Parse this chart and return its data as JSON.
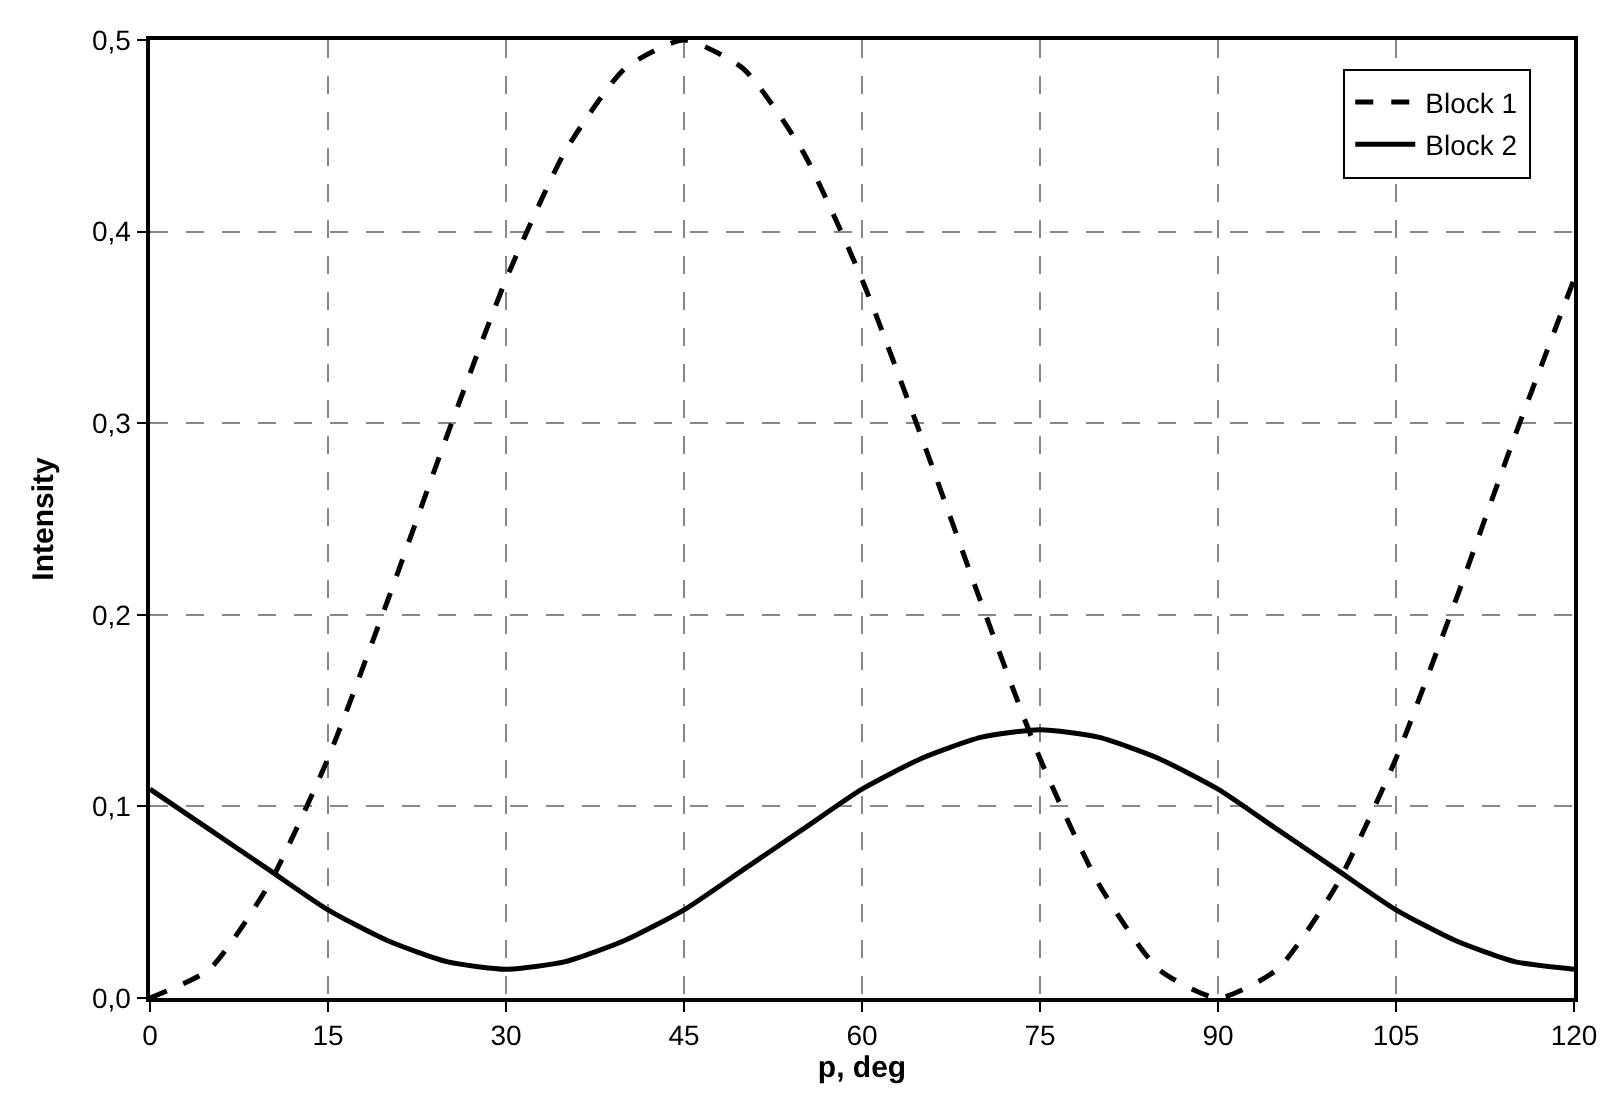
{
  "chart_data": {
    "type": "line",
    "xlabel": "p, deg",
    "ylabel": "Intensity",
    "x": [
      0,
      5,
      10,
      15,
      20,
      25,
      30,
      35,
      40,
      45,
      50,
      55,
      60,
      65,
      70,
      75,
      80,
      85,
      90,
      95,
      100,
      105,
      110,
      115,
      120
    ],
    "series": [
      {
        "name": "Block 1",
        "color": "#000000",
        "line_style": "dashed",
        "values": [
          0,
          0.015,
          0.059,
          0.125,
          0.207,
          0.293,
          0.375,
          0.442,
          0.485,
          0.5,
          0.485,
          0.442,
          0.375,
          0.293,
          0.207,
          0.125,
          0.059,
          0.015,
          0,
          0.015,
          0.059,
          0.125,
          0.207,
          0.293,
          0.375
        ]
      },
      {
        "name": "Block 2",
        "color": "#000000",
        "line_style": "solid",
        "values": [
          0.109,
          0.088,
          0.067,
          0.046,
          0.03,
          0.019,
          0.015,
          0.019,
          0.03,
          0.046,
          0.067,
          0.088,
          0.109,
          0.125,
          0.136,
          0.14,
          0.136,
          0.125,
          0.109,
          0.088,
          0.067,
          0.046,
          0.03,
          0.019,
          0.015
        ]
      }
    ],
    "xlim": [
      0,
      120
    ],
    "xticks": [
      0,
      15,
      30,
      45,
      60,
      75,
      90,
      105,
      120
    ],
    "ylim": [
      0,
      0.5
    ],
    "yticks": [
      {
        "value": 0,
        "label": "0,0"
      },
      {
        "value": 0.1,
        "label": "0,1"
      },
      {
        "value": 0.2,
        "label": "0,2"
      },
      {
        "value": 0.3,
        "label": "0,3"
      },
      {
        "value": 0.4,
        "label": "0,4"
      },
      {
        "value": 0.5,
        "label": "0,5"
      }
    ],
    "grid": true,
    "legend": "top right"
  }
}
